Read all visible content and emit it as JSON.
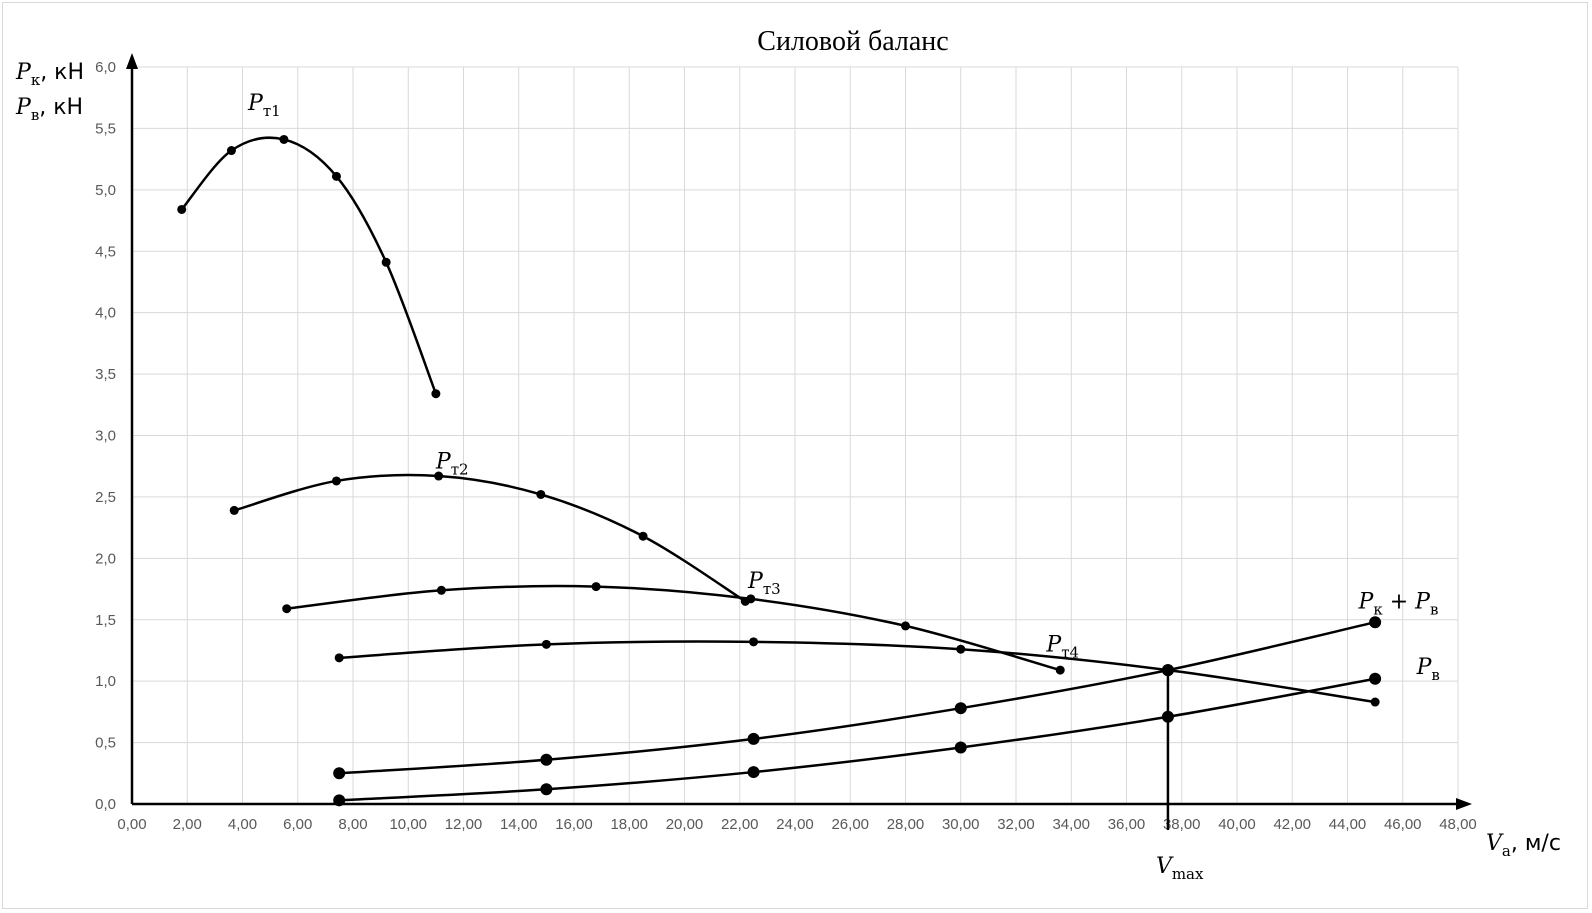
{
  "chart_data": {
    "type": "line",
    "title": "Силовой баланс",
    "xlabel": {
      "sym": "V",
      "sub": "a",
      "unit": ", м/с"
    },
    "ylabel_lines": [
      {
        "sym": "P",
        "sub": "к",
        "unit": ",  кН"
      },
      {
        "sym": "P",
        "sub": "в",
        "unit": ", кН"
      }
    ],
    "xlim": [
      0,
      48
    ],
    "ylim": [
      0,
      6
    ],
    "x_ticks": [
      "0,00",
      "2,00",
      "4,00",
      "6,00",
      "8,00",
      "10,00",
      "12,00",
      "14,00",
      "16,00",
      "18,00",
      "20,00",
      "22,00",
      "24,00",
      "26,00",
      "28,00",
      "30,00",
      "32,00",
      "34,00",
      "36,00",
      "38,00",
      "40,00",
      "42,00",
      "44,00",
      "46,00",
      "48,00"
    ],
    "y_ticks": [
      "0,0",
      "0,5",
      "1,0",
      "1,5",
      "2,0",
      "2,5",
      "3,0",
      "3,5",
      "4,0",
      "4,5",
      "5,0",
      "5,5",
      "6,0"
    ],
    "grid": true,
    "series": [
      {
        "name": "Pт1",
        "label": {
          "sym": "P",
          "sub": "т1"
        },
        "marker_size": "small",
        "x": [
          1.8,
          3.6,
          5.5,
          7.4,
          9.2,
          11.0
        ],
        "y": [
          4.84,
          5.32,
          5.41,
          5.11,
          4.41,
          3.34
        ]
      },
      {
        "name": "Pт2",
        "label": {
          "sym": "P",
          "sub": "т2"
        },
        "marker_size": "small",
        "x": [
          3.7,
          7.4,
          11.1,
          14.8,
          18.5,
          22.2
        ],
        "y": [
          2.39,
          2.63,
          2.67,
          2.52,
          2.18,
          1.65
        ]
      },
      {
        "name": "Pт3",
        "label": {
          "sym": "P",
          "sub": "т3"
        },
        "marker_size": "small",
        "x": [
          5.6,
          11.2,
          16.8,
          22.4,
          28.0,
          33.6
        ],
        "y": [
          1.59,
          1.74,
          1.77,
          1.67,
          1.45,
          1.09
        ]
      },
      {
        "name": "Pт4",
        "label": {
          "sym": "P",
          "sub": "т4"
        },
        "marker_size": "small",
        "x": [
          7.5,
          15.0,
          22.5,
          30.0,
          37.5,
          45.0
        ],
        "y": [
          1.19,
          1.3,
          1.32,
          1.26,
          1.09,
          0.83
        ]
      },
      {
        "name": "Pк + Pв",
        "label": {
          "sym": "P",
          "sub": "к",
          "mid": " + ",
          "sym2": "P",
          "sub2": "в"
        },
        "marker_size": "large",
        "x": [
          7.5,
          15.0,
          22.5,
          30.0,
          37.5,
          45.0
        ],
        "y": [
          0.25,
          0.36,
          0.53,
          0.78,
          1.09,
          1.48
        ]
      },
      {
        "name": "Pв",
        "label": {
          "sym": "P",
          "sub": "в"
        },
        "marker_size": "large",
        "x": [
          7.5,
          15.0,
          22.5,
          30.0,
          37.5,
          45.0
        ],
        "y": [
          0.03,
          0.12,
          0.26,
          0.46,
          0.71,
          1.02
        ]
      }
    ],
    "vmax": {
      "label": {
        "sym": "V",
        "sub": "max"
      },
      "x": 37.5,
      "y": 1.09
    }
  }
}
